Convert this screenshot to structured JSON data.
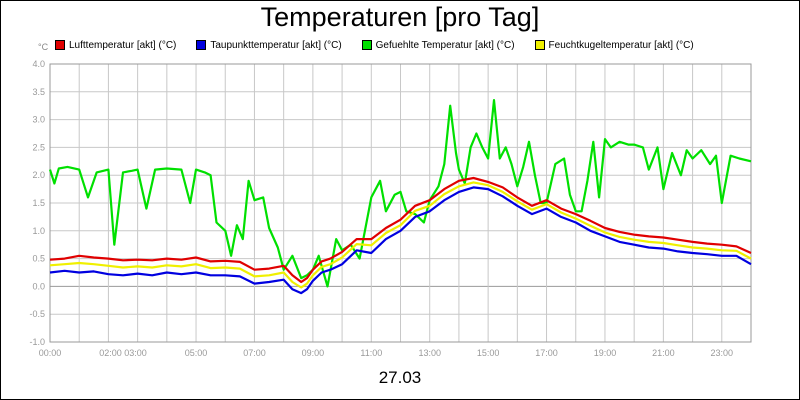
{
  "chart_data": {
    "type": "line",
    "title": "Temperaturen [pro Tag]",
    "y_unit": "°C",
    "date_label": "27.03",
    "ylim": [
      -1.0,
      4.0
    ],
    "yticks": [
      "4.0",
      "3.5",
      "3.0",
      "2.5",
      "2.0",
      "1.5",
      "1.0",
      "0.5",
      "0.0",
      "-0.5",
      "-1.0"
    ],
    "xlim_hours": [
      0,
      24
    ],
    "xticks": [
      {
        "label": "00:00",
        "h": 0
      },
      {
        "label": "02:00 03:00",
        "h": 2.5
      },
      {
        "label": "05:00",
        "h": 5
      },
      {
        "label": "07:00",
        "h": 7
      },
      {
        "label": "09:00",
        "h": 9
      },
      {
        "label": "11:00",
        "h": 11
      },
      {
        "label": "13:00",
        "h": 13
      },
      {
        "label": "15:00",
        "h": 15
      },
      {
        "label": "17:00",
        "h": 17
      },
      {
        "label": "19:00",
        "h": 19
      },
      {
        "label": "21:00",
        "h": 21
      },
      {
        "label": "23:00",
        "h": 23
      }
    ],
    "grid": true,
    "legend_position": "top",
    "series": [
      {
        "name": "Lufttemperatur [akt] (°C)",
        "color": "#e00000",
        "points": [
          [
            0,
            0.48
          ],
          [
            0.5,
            0.5
          ],
          [
            1,
            0.55
          ],
          [
            1.5,
            0.52
          ],
          [
            2,
            0.5
          ],
          [
            2.5,
            0.47
          ],
          [
            3,
            0.48
          ],
          [
            3.5,
            0.47
          ],
          [
            4,
            0.5
          ],
          [
            4.5,
            0.48
          ],
          [
            5,
            0.52
          ],
          [
            5.5,
            0.45
          ],
          [
            6,
            0.46
          ],
          [
            6.5,
            0.44
          ],
          [
            7,
            0.3
          ],
          [
            7.5,
            0.32
          ],
          [
            8,
            0.37
          ],
          [
            8.3,
            0.2
          ],
          [
            8.6,
            0.08
          ],
          [
            8.8,
            0.15
          ],
          [
            9,
            0.3
          ],
          [
            9.3,
            0.45
          ],
          [
            9.6,
            0.5
          ],
          [
            10,
            0.62
          ],
          [
            10.5,
            0.85
          ],
          [
            11,
            0.85
          ],
          [
            11.5,
            1.05
          ],
          [
            12,
            1.2
          ],
          [
            12.5,
            1.45
          ],
          [
            13,
            1.55
          ],
          [
            13.5,
            1.75
          ],
          [
            14,
            1.9
          ],
          [
            14.5,
            1.95
          ],
          [
            15,
            1.88
          ],
          [
            15.5,
            1.78
          ],
          [
            16,
            1.6
          ],
          [
            16.5,
            1.45
          ],
          [
            17,
            1.55
          ],
          [
            17.5,
            1.4
          ],
          [
            18,
            1.3
          ],
          [
            18.5,
            1.18
          ],
          [
            19,
            1.05
          ],
          [
            19.5,
            0.98
          ],
          [
            20,
            0.93
          ],
          [
            20.5,
            0.9
          ],
          [
            21,
            0.88
          ],
          [
            21.5,
            0.84
          ],
          [
            22,
            0.8
          ],
          [
            22.5,
            0.77
          ],
          [
            23,
            0.75
          ],
          [
            23.5,
            0.72
          ],
          [
            24,
            0.6
          ]
        ]
      },
      {
        "name": "Taupunkttemperatur [akt] (°C)",
        "color": "#0000e0",
        "points": [
          [
            0,
            0.25
          ],
          [
            0.5,
            0.28
          ],
          [
            1,
            0.25
          ],
          [
            1.5,
            0.27
          ],
          [
            2,
            0.22
          ],
          [
            2.5,
            0.2
          ],
          [
            3,
            0.23
          ],
          [
            3.5,
            0.2
          ],
          [
            4,
            0.25
          ],
          [
            4.5,
            0.22
          ],
          [
            5,
            0.25
          ],
          [
            5.5,
            0.2
          ],
          [
            6,
            0.2
          ],
          [
            6.5,
            0.18
          ],
          [
            7,
            0.05
          ],
          [
            7.5,
            0.08
          ],
          [
            8,
            0.12
          ],
          [
            8.3,
            -0.05
          ],
          [
            8.6,
            -0.12
          ],
          [
            8.8,
            -0.05
          ],
          [
            9,
            0.1
          ],
          [
            9.3,
            0.25
          ],
          [
            9.6,
            0.3
          ],
          [
            10,
            0.4
          ],
          [
            10.5,
            0.65
          ],
          [
            11,
            0.6
          ],
          [
            11.5,
            0.85
          ],
          [
            12,
            1.0
          ],
          [
            12.5,
            1.25
          ],
          [
            13,
            1.35
          ],
          [
            13.5,
            1.55
          ],
          [
            14,
            1.7
          ],
          [
            14.5,
            1.78
          ],
          [
            15,
            1.75
          ],
          [
            15.5,
            1.62
          ],
          [
            16,
            1.45
          ],
          [
            16.5,
            1.3
          ],
          [
            17,
            1.4
          ],
          [
            17.5,
            1.25
          ],
          [
            18,
            1.15
          ],
          [
            18.5,
            1.0
          ],
          [
            19,
            0.9
          ],
          [
            19.5,
            0.8
          ],
          [
            20,
            0.75
          ],
          [
            20.5,
            0.7
          ],
          [
            21,
            0.68
          ],
          [
            21.5,
            0.63
          ],
          [
            22,
            0.6
          ],
          [
            22.5,
            0.58
          ],
          [
            23,
            0.55
          ],
          [
            23.5,
            0.55
          ],
          [
            24,
            0.4
          ]
        ]
      },
      {
        "name": "Gefuehlte Temperatur [akt] (°C)",
        "color": "#00e000",
        "points": [
          [
            0,
            2.1
          ],
          [
            0.15,
            1.85
          ],
          [
            0.3,
            2.12
          ],
          [
            0.6,
            2.15
          ],
          [
            1,
            2.1
          ],
          [
            1.3,
            1.6
          ],
          [
            1.6,
            2.05
          ],
          [
            2,
            2.1
          ],
          [
            2.2,
            0.75
          ],
          [
            2.5,
            2.05
          ],
          [
            2.8,
            2.08
          ],
          [
            3,
            2.1
          ],
          [
            3.3,
            1.4
          ],
          [
            3.6,
            2.1
          ],
          [
            4,
            2.12
          ],
          [
            4.5,
            2.1
          ],
          [
            4.8,
            1.5
          ],
          [
            5,
            2.1
          ],
          [
            5.3,
            2.05
          ],
          [
            5.5,
            2.0
          ],
          [
            5.7,
            1.15
          ],
          [
            6,
            1.0
          ],
          [
            6.2,
            0.55
          ],
          [
            6.4,
            1.1
          ],
          [
            6.6,
            0.85
          ],
          [
            6.8,
            1.9
          ],
          [
            7,
            1.55
          ],
          [
            7.3,
            1.6
          ],
          [
            7.5,
            1.05
          ],
          [
            7.8,
            0.7
          ],
          [
            8,
            0.3
          ],
          [
            8.3,
            0.55
          ],
          [
            8.6,
            0.15
          ],
          [
            8.8,
            0.2
          ],
          [
            9,
            0.3
          ],
          [
            9.2,
            0.55
          ],
          [
            9.5,
            0.0
          ],
          [
            9.8,
            0.85
          ],
          [
            10,
            0.65
          ],
          [
            10.3,
            0.75
          ],
          [
            10.6,
            0.5
          ],
          [
            11,
            1.6
          ],
          [
            11.3,
            1.9
          ],
          [
            11.5,
            1.35
          ],
          [
            11.8,
            1.65
          ],
          [
            12,
            1.7
          ],
          [
            12.2,
            1.35
          ],
          [
            12.5,
            1.3
          ],
          [
            12.8,
            1.15
          ],
          [
            13,
            1.55
          ],
          [
            13.3,
            1.8
          ],
          [
            13.5,
            2.2
          ],
          [
            13.7,
            3.25
          ],
          [
            13.9,
            2.4
          ],
          [
            14,
            2.1
          ],
          [
            14.2,
            1.85
          ],
          [
            14.4,
            2.5
          ],
          [
            14.6,
            2.75
          ],
          [
            14.8,
            2.5
          ],
          [
            15,
            2.3
          ],
          [
            15.2,
            3.35
          ],
          [
            15.4,
            2.3
          ],
          [
            15.6,
            2.5
          ],
          [
            15.8,
            2.2
          ],
          [
            16,
            1.8
          ],
          [
            16.2,
            2.15
          ],
          [
            16.4,
            2.6
          ],
          [
            16.6,
            2.0
          ],
          [
            16.8,
            1.5
          ],
          [
            17,
            1.5
          ],
          [
            17.3,
            2.2
          ],
          [
            17.6,
            2.3
          ],
          [
            17.8,
            1.65
          ],
          [
            18,
            1.35
          ],
          [
            18.2,
            1.35
          ],
          [
            18.4,
            1.9
          ],
          [
            18.6,
            2.6
          ],
          [
            18.8,
            1.6
          ],
          [
            19,
            2.65
          ],
          [
            19.2,
            2.5
          ],
          [
            19.5,
            2.6
          ],
          [
            19.8,
            2.55
          ],
          [
            20,
            2.55
          ],
          [
            20.3,
            2.5
          ],
          [
            20.5,
            2.1
          ],
          [
            20.8,
            2.5
          ],
          [
            21,
            1.75
          ],
          [
            21.3,
            2.4
          ],
          [
            21.6,
            2.0
          ],
          [
            21.8,
            2.45
          ],
          [
            22,
            2.3
          ],
          [
            22.3,
            2.45
          ],
          [
            22.6,
            2.2
          ],
          [
            22.8,
            2.35
          ],
          [
            23,
            1.5
          ],
          [
            23.3,
            2.35
          ],
          [
            23.6,
            2.3
          ],
          [
            24,
            2.25
          ]
        ]
      },
      {
        "name": "Feuchtkugeltemperatur [akt] (°C)",
        "color": "#f0f000",
        "points": [
          [
            0,
            0.38
          ],
          [
            0.5,
            0.4
          ],
          [
            1,
            0.42
          ],
          [
            1.5,
            0.4
          ],
          [
            2,
            0.37
          ],
          [
            2.5,
            0.34
          ],
          [
            3,
            0.36
          ],
          [
            3.5,
            0.34
          ],
          [
            4,
            0.38
          ],
          [
            4.5,
            0.36
          ],
          [
            5,
            0.4
          ],
          [
            5.5,
            0.33
          ],
          [
            6,
            0.34
          ],
          [
            6.5,
            0.32
          ],
          [
            7,
            0.18
          ],
          [
            7.5,
            0.2
          ],
          [
            8,
            0.25
          ],
          [
            8.3,
            0.08
          ],
          [
            8.6,
            -0.02
          ],
          [
            8.8,
            0.05
          ],
          [
            9,
            0.2
          ],
          [
            9.3,
            0.35
          ],
          [
            9.6,
            0.4
          ],
          [
            10,
            0.52
          ],
          [
            10.5,
            0.76
          ],
          [
            11,
            0.74
          ],
          [
            11.5,
            0.96
          ],
          [
            12,
            1.1
          ],
          [
            12.5,
            1.36
          ],
          [
            13,
            1.45
          ],
          [
            13.5,
            1.66
          ],
          [
            14,
            1.8
          ],
          [
            14.5,
            1.87
          ],
          [
            15,
            1.82
          ],
          [
            15.5,
            1.7
          ],
          [
            16,
            1.53
          ],
          [
            16.5,
            1.38
          ],
          [
            17,
            1.48
          ],
          [
            17.5,
            1.33
          ],
          [
            18,
            1.22
          ],
          [
            18.5,
            1.09
          ],
          [
            19,
            0.97
          ],
          [
            19.5,
            0.89
          ],
          [
            20,
            0.84
          ],
          [
            20.5,
            0.8
          ],
          [
            21,
            0.78
          ],
          [
            21.5,
            0.74
          ],
          [
            22,
            0.7
          ],
          [
            22.5,
            0.68
          ],
          [
            23,
            0.65
          ],
          [
            23.5,
            0.64
          ],
          [
            24,
            0.5
          ]
        ]
      }
    ]
  }
}
